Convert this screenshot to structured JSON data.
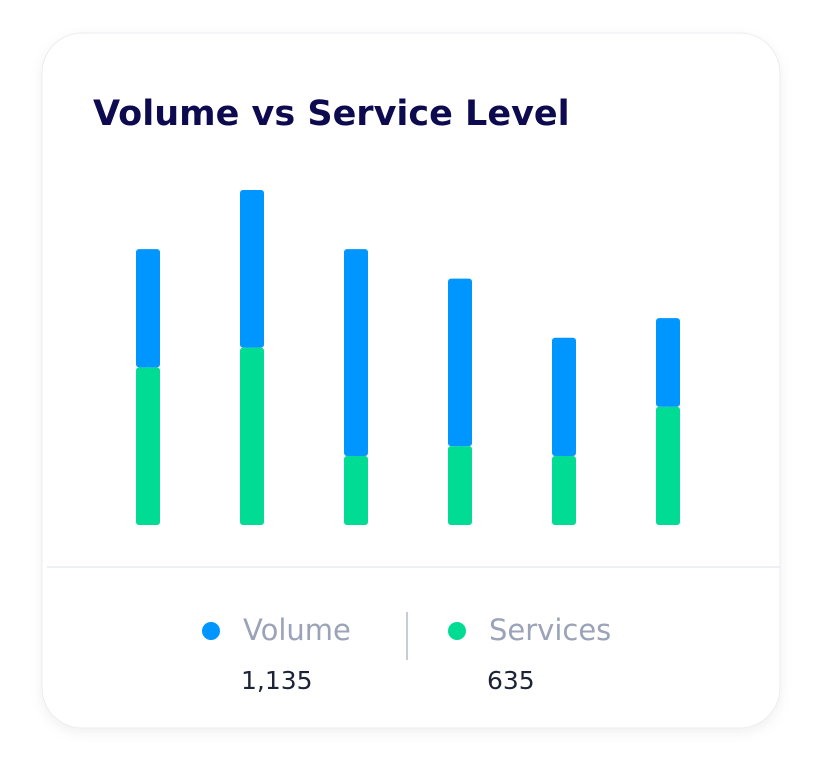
{
  "chart_data": {
    "type": "stacked-bar",
    "title": "Volume vs Service Level",
    "categories": [
      null,
      null,
      null,
      null,
      null,
      null
    ],
    "series": [
      {
        "name": "Volume",
        "color": "#0096ff",
        "values": [
          12,
          16,
          21,
          17,
          12,
          9
        ]
      },
      {
        "name": "Services",
        "color": "#00dc94",
        "values": [
          16,
          18,
          7,
          8,
          7,
          12
        ]
      }
    ],
    "totals": [
      {
        "value": 1135,
        "label": "1,135"
      },
      635
    ],
    "ylim": [
      0,
      34
    ]
  }
}
